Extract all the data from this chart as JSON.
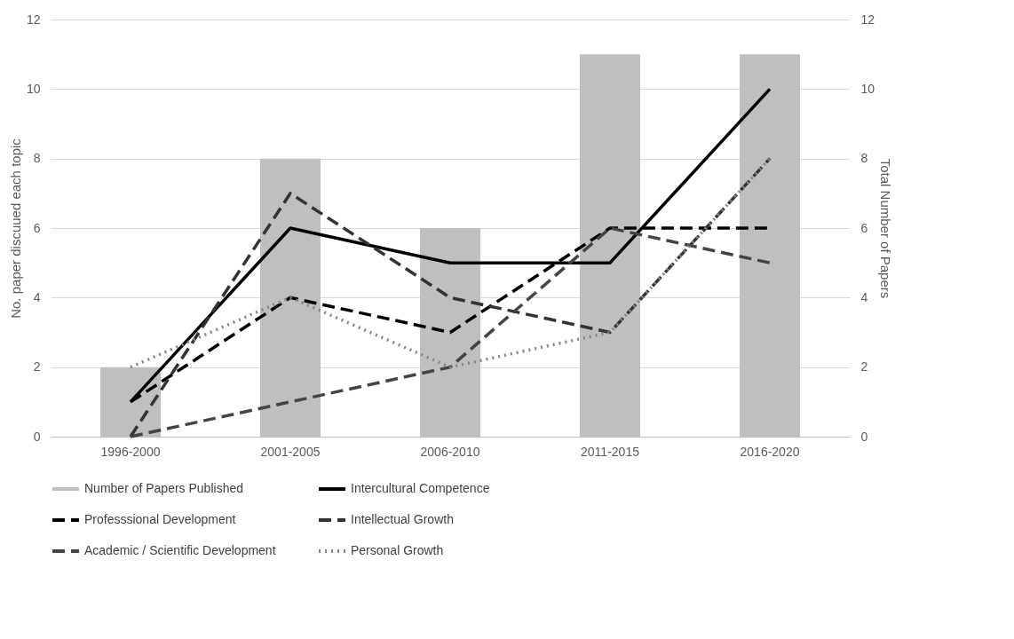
{
  "chart_data": {
    "type": "line",
    "categories": [
      "1996-2000",
      "2001-2005",
      "2006-2010",
      "2011-2015",
      "2016-2020"
    ],
    "ylabel": "No. paper discuued each topic",
    "y2label": "Total Number of Papers",
    "ylim": [
      0,
      12
    ],
    "yticks": [
      0,
      2,
      4,
      6,
      8,
      10,
      12
    ],
    "y2lim": [
      0,
      12
    ],
    "y2ticks": [
      0,
      2,
      4,
      6,
      8,
      10,
      12
    ],
    "grid": "y",
    "legend": "bottom",
    "series": [
      {
        "name": "Number of Papers Published",
        "type": "bar",
        "axis": "y2",
        "color": "#bfbfbf",
        "values": [
          2,
          8,
          6,
          11,
          11
        ]
      },
      {
        "name": "Intercultural Competence",
        "color": "#000000",
        "line_style": "solid",
        "values": [
          1,
          6,
          5,
          5,
          10
        ]
      },
      {
        "name": "Professsional Development",
        "color": "#000000",
        "line_style": "dashed",
        "values": [
          1,
          4,
          3,
          6,
          6
        ]
      },
      {
        "name": "Intellectual Growth",
        "color": "#333333",
        "line_style": "dashed",
        "values": [
          0,
          7,
          4,
          3,
          8
        ]
      },
      {
        "name": "Academic / Scientific Development",
        "color": "#444444",
        "line_style": "dashed",
        "values": [
          0,
          1,
          2,
          6,
          5
        ]
      },
      {
        "name": "Personal Growth",
        "color": "#858585",
        "line_style": "dotted",
        "values": [
          2,
          4,
          2,
          3,
          8
        ]
      }
    ]
  }
}
